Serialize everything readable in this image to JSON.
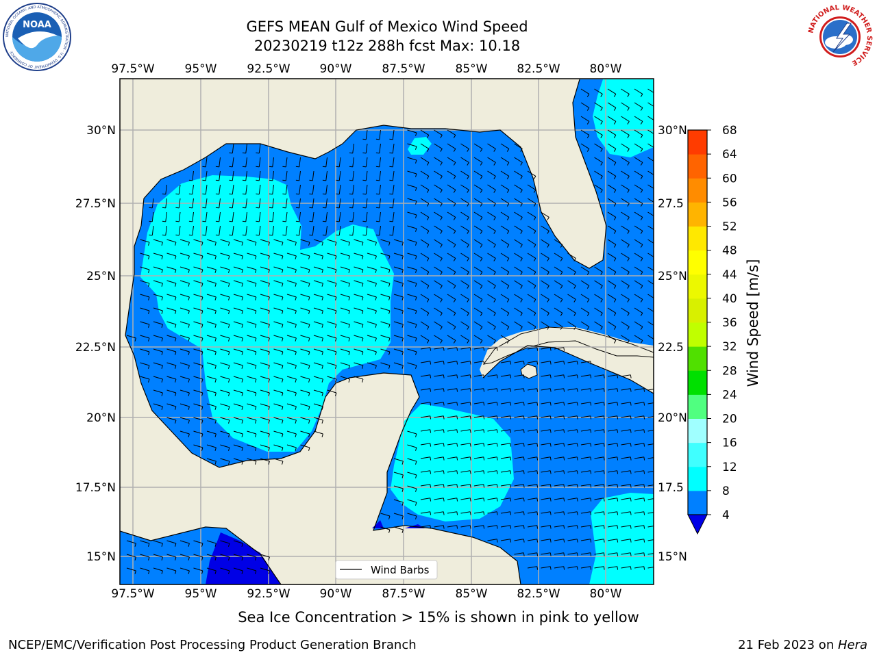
{
  "title": {
    "line1": "GEFS MEAN Gulf of Mexico Wind Speed",
    "line2": "20230219 t12z 288h fcst   Max: 10.18"
  },
  "logos": {
    "noaa": {
      "center_text": "NOAA",
      "ring_text": "NATIONAL OCEANIC AND ATMOSPHERIC ADMINISTRATION · U.S. DEPARTMENT OF COMMERCE",
      "icon": "noaa-logo"
    },
    "nws": {
      "ring_text": "NATIONAL WEATHER SERVICE",
      "icon": "nws-logo"
    }
  },
  "map": {
    "lon_labels": [
      "97.5°W",
      "95°W",
      "92.5°W",
      "90°W",
      "87.5°W",
      "85°W",
      "82.5°W",
      "80°W"
    ],
    "lat_labels_left": [
      "30°N",
      "27.5°N",
      "25°N",
      "22.5°N",
      "20°N",
      "17.5°N",
      "15°N"
    ],
    "lat_labels_right": [
      "30°N",
      "27.5",
      "25°N",
      "22.5",
      "20°N",
      "17.5",
      "15°N"
    ],
    "colors": {
      "land": "#efeddc",
      "ocean_4_8": "#0080ff",
      "ocean_8_12": "#00ffff",
      "ocean_below_4": "#0000e6",
      "grid": "#b0b0b0",
      "coast": "#000000"
    },
    "legend_label": "Wind Barbs"
  },
  "colorbar": {
    "label": "Wind Speed [m/s]",
    "ticks": [
      "4",
      "8",
      "12",
      "16",
      "20",
      "24",
      "28",
      "32",
      "36",
      "40",
      "44",
      "48",
      "52",
      "56",
      "60",
      "64",
      "68"
    ],
    "band_colors": [
      "#0080ff",
      "#00ffff",
      "#40ffff",
      "#a0ffff",
      "#50ff80",
      "#00e000",
      "#50e000",
      "#c0ff00",
      "#d8f000",
      "#ecf800",
      "#ffff00",
      "#ffe800",
      "#ffb400",
      "#ff8c00",
      "#ff6400",
      "#ff3c00",
      "#ff0000"
    ],
    "extend_color": "#0000e6"
  },
  "note": "Sea Ice Concentration > 15% is shown in pink to yellow",
  "footer": {
    "left": "NCEP/EMC/Verification Post Processing Product Generation Branch",
    "right_prefix": "21 Feb 2023 on ",
    "right_host": "Hera"
  }
}
